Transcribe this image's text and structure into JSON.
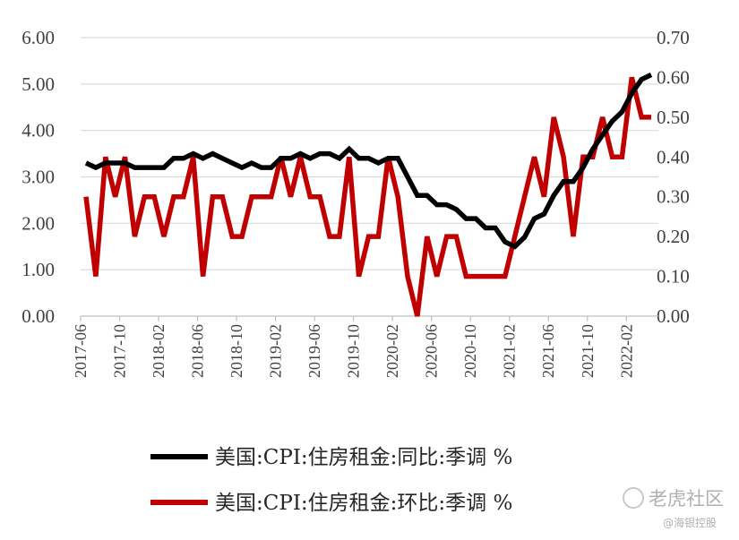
{
  "chart_data": {
    "type": "line",
    "left_axis": {
      "ylim": [
        0,
        6
      ],
      "ticks": [
        "0.00",
        "1.00",
        "2.00",
        "3.00",
        "4.00",
        "5.00",
        "6.00"
      ]
    },
    "right_axis": {
      "ylim": [
        0,
        0.7
      ],
      "ticks": [
        "0.00",
        "0.10",
        "0.20",
        "0.30",
        "0.40",
        "0.50",
        "0.60",
        "0.70"
      ]
    },
    "x_tick_labels": [
      "2017-06",
      "2017-10",
      "2018-02",
      "2018-06",
      "2018-10",
      "2019-02",
      "2019-06",
      "2019-10",
      "2020-02",
      "2020-06",
      "2020-10",
      "2021-02",
      "2021-06",
      "2021-10",
      "2022-02"
    ],
    "x_start": "2017-06",
    "grid": true,
    "legend_position": "bottom",
    "series": [
      {
        "name": "美国:CPI:住房租金:同比:季调 %",
        "axis": "left",
        "color": "#000000",
        "values": [
          3.3,
          3.2,
          3.3,
          3.3,
          3.3,
          3.2,
          3.2,
          3.2,
          3.2,
          3.4,
          3.4,
          3.5,
          3.4,
          3.5,
          3.4,
          3.3,
          3.2,
          3.3,
          3.2,
          3.2,
          3.4,
          3.4,
          3.5,
          3.4,
          3.5,
          3.5,
          3.4,
          3.6,
          3.4,
          3.4,
          3.3,
          3.4,
          3.4,
          3.0,
          2.6,
          2.6,
          2.4,
          2.4,
          2.3,
          2.1,
          2.1,
          1.9,
          1.9,
          1.6,
          1.5,
          1.7,
          2.1,
          2.2,
          2.6,
          2.9,
          2.9,
          3.2,
          3.6,
          3.9,
          4.2,
          4.4,
          4.8,
          5.1,
          5.2
        ]
      },
      {
        "name": "美国:CPI:住房租金:环比:季调 %",
        "axis": "right",
        "color": "#c00000",
        "values": [
          0.3,
          0.1,
          0.4,
          0.3,
          0.4,
          0.2,
          0.3,
          0.3,
          0.2,
          0.3,
          0.3,
          0.4,
          0.1,
          0.3,
          0.3,
          0.2,
          0.2,
          0.3,
          0.3,
          0.3,
          0.4,
          0.3,
          0.4,
          0.3,
          0.3,
          0.2,
          0.2,
          0.4,
          0.1,
          0.2,
          0.2,
          0.4,
          0.3,
          0.1,
          0.0,
          0.2,
          0.1,
          0.2,
          0.2,
          0.1,
          0.1,
          0.1,
          0.1,
          0.1,
          0.2,
          0.3,
          0.4,
          0.3,
          0.5,
          0.4,
          0.2,
          0.4,
          0.4,
          0.5,
          0.4,
          0.4,
          0.6,
          0.5,
          0.5
        ]
      }
    ]
  },
  "watermark": {
    "brand": "老虎社区",
    "handle": "@海银控股"
  }
}
